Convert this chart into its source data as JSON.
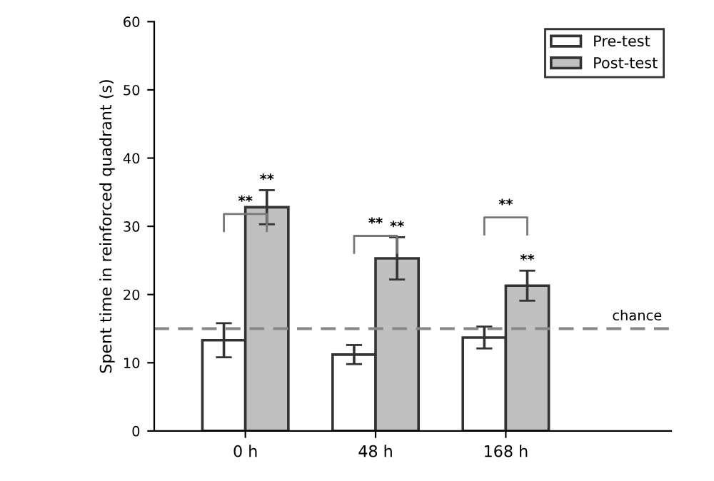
{
  "chart_data": {
    "type": "bar",
    "ylabel": "Spent time in reinforced quadrant (s)",
    "categories": [
      "0 h",
      "48 h",
      "168 h"
    ],
    "series": [
      {
        "name": "Pre-test",
        "color": "#ffffff",
        "values": [
          13.3,
          11.2,
          13.7
        ],
        "errors": [
          2.5,
          1.4,
          1.6
        ]
      },
      {
        "name": "Post-test",
        "color": "#c0c0c0",
        "values": [
          32.8,
          25.3,
          21.3
        ],
        "errors": [
          2.5,
          3.1,
          2.2
        ]
      }
    ],
    "ylim": [
      0,
      60
    ],
    "yticks": [
      0,
      10,
      20,
      30,
      40,
      50,
      60
    ],
    "legend": "top right",
    "ref_lines": [
      {
        "axis": "y",
        "value": 15,
        "label": "chance",
        "color": "#888888",
        "line_style": "dashed"
      }
    ],
    "annotations": [
      "**",
      "**",
      "**",
      "**",
      "**",
      "**"
    ]
  }
}
